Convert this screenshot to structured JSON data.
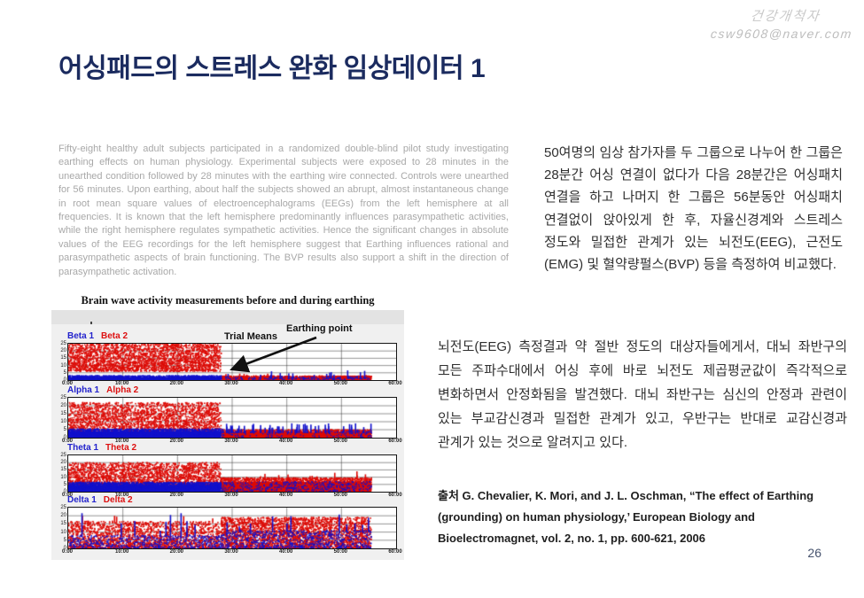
{
  "watermark": {
    "line1": "건강개척자",
    "line2": "csw9608@naver.com"
  },
  "slide": {
    "title": "어싱패드의 스트레스 완화 임상데이터 1",
    "page_number": "26"
  },
  "abstract_en": "Fifty-eight healthy adult subjects participated in a randomized double-blind pilot study investigating earthing effects on human physiology. Experimental subjects were exposed to 28 minutes in the unearthed condition followed by 28 minutes with the earthing wire connected. Controls were unearthed for 56 minutes. Upon earthing, about half the subjects showed an abrupt, almost instantaneous change in root mean square values of electroencephalograms (EEGs) from the left hemisphere at all frequencies.  It is known that the left hemisphere predominantly influences parasympathetic activities, while the right hemisphere regulates sympathetic activities. Hence the significant changes in absolute values of the EEG recordings for the left hemisphere suggest that Earthing influences rational and parasympathetic aspects of brain functioning. The BVP results also support a shift in the direction of parasympathetic activation.",
  "korean_summary_1": "50여명의 임상 참가자를 두 그룹으로 나누어 한 그룹은 28분간 어싱 연결이 없다가 다음 28분간은 어싱패치 연결을 하고 나머지 한 그룹은 56분동안 어싱패치 연결없이 앉아있게 한 후, 자율신경계와 스트레스 정도와 밀접한 관계가 있는 뇌전도(EEG), 근전도(EMG) 및 혈약량펄스(BVP) 등을 측정하여 비교했다.",
  "korean_summary_2": "뇌전도(EEG) 측정결과 약 절반 정도의 대상자들에게서, 대뇌 좌반구의 모든 주파수대에서 어싱 후에 바로 뇌전도 제곱평균값이 즉각적으로 변화하면서 안정화됨을 발견했다. 대뇌 좌반구는 심신의 안정과 관련이 있는 부교감신경과 밀접한 관계가 있고, 우반구는 반대로 교감신경과 관계가 있는 것으로 알려지고 있다.",
  "citation": "출처 G. Chevalier, K. Mori, and J. L. Oschman, “The effect of Earthing (grounding) on human physiology,’ European Biology and Bioelectromagnet, vol. 2, no. 1, pp. 600-621, 2006",
  "chart_data": {
    "type": "scatter",
    "title": "Brain wave activity measurements before and during earthing",
    "annotations": {
      "trial_means": "Trial Means",
      "earthing_point": "Earthing point"
    },
    "x_ticks": [
      "0:00",
      "10:00",
      "20:00",
      "30:00",
      "40:00",
      "50:00",
      "60:00"
    ],
    "y_ticks": [
      25,
      20,
      15,
      10,
      5,
      0
    ],
    "x_range_min": [
      0,
      60
    ],
    "y_range": [
      0,
      25
    ],
    "grid": true,
    "earthing_point_min": 28,
    "recording_end_min": 55.5,
    "colors": {
      "red": "#dd0b06",
      "blue": "#1111cc"
    },
    "bands": [
      {
        "label1": "Beta 1",
        "label2": "Beta 2",
        "red": {
          "before": {
            "mode": "cloud",
            "y": [
              6,
              25
            ],
            "n": 2800,
            "bias": 1.15
          },
          "after": {
            "mode": "strip",
            "y": [
              0,
              2.8
            ],
            "n": 900,
            "spikes": {
              "n": 12,
              "y": [
                2.8,
                4.5
              ]
            }
          }
        },
        "blue": {
          "before": {
            "mode": "strip",
            "y": [
              0,
              3
            ],
            "n": 900
          },
          "after": {
            "mode": "sparse",
            "y": [
              0,
              2
            ],
            "n": 160,
            "spikes": {
              "n": 20,
              "y": [
                2,
                7
              ]
            }
          }
        }
      },
      {
        "label1": "Alpha 1",
        "label2": "Alpha 2",
        "red": {
          "before": {
            "mode": "cloud",
            "y": [
              2,
              22
            ],
            "n": 2800,
            "bias": 1.3
          },
          "after": {
            "mode": "strip",
            "y": [
              0,
              5
            ],
            "n": 1100
          }
        },
        "blue": {
          "before": {
            "mode": "strip",
            "y": [
              0,
              5.5
            ],
            "n": 1100
          },
          "after": {
            "mode": "sparse",
            "y": [
              0,
              4
            ],
            "n": 150,
            "spikes": {
              "n": 60,
              "y": [
                4,
                9
              ]
            }
          }
        }
      },
      {
        "label1": "Theta 1",
        "label2": "Theta 2",
        "red": {
          "before": {
            "mode": "cloud",
            "y": [
              2,
              20
            ],
            "n": 2800,
            "bias": 1.45
          },
          "after": {
            "mode": "strip",
            "y": [
              0,
              9.5
            ],
            "n": 1600,
            "spikes": {
              "n": 14,
              "y": [
                9.5,
                14
              ]
            }
          }
        },
        "blue": {
          "before": {
            "mode": "strip",
            "y": [
              0,
              6.5
            ],
            "n": 1300
          },
          "after": {
            "mode": "sparse",
            "y": [
              0,
              7
            ],
            "n": 450
          }
        }
      },
      {
        "label1": "Delta 1",
        "label2": "Delta 2",
        "red": {
          "before": {
            "mode": "cloud",
            "y": [
              0,
              16.5
            ],
            "n": 2200,
            "bias": 1.5,
            "spikes": {
              "n": 10,
              "y": [
                16.5,
                21
              ]
            }
          },
          "after": {
            "mode": "cloud",
            "y": [
              0,
              19
            ],
            "n": 3200,
            "bias": 1.25
          }
        },
        "blue": {
          "before": {
            "mode": "sparse",
            "y": [
              0,
              8
            ],
            "n": 650,
            "bias": 1.3,
            "spikes": {
              "n": 10,
              "y": [
                8,
                22
              ]
            }
          },
          "after": {
            "mode": "sparse",
            "y": [
              0,
              11
            ],
            "n": 900,
            "bias": 1.3,
            "spikes": {
              "n": 12,
              "y": [
                11,
                21
              ]
            }
          }
        }
      }
    ]
  }
}
